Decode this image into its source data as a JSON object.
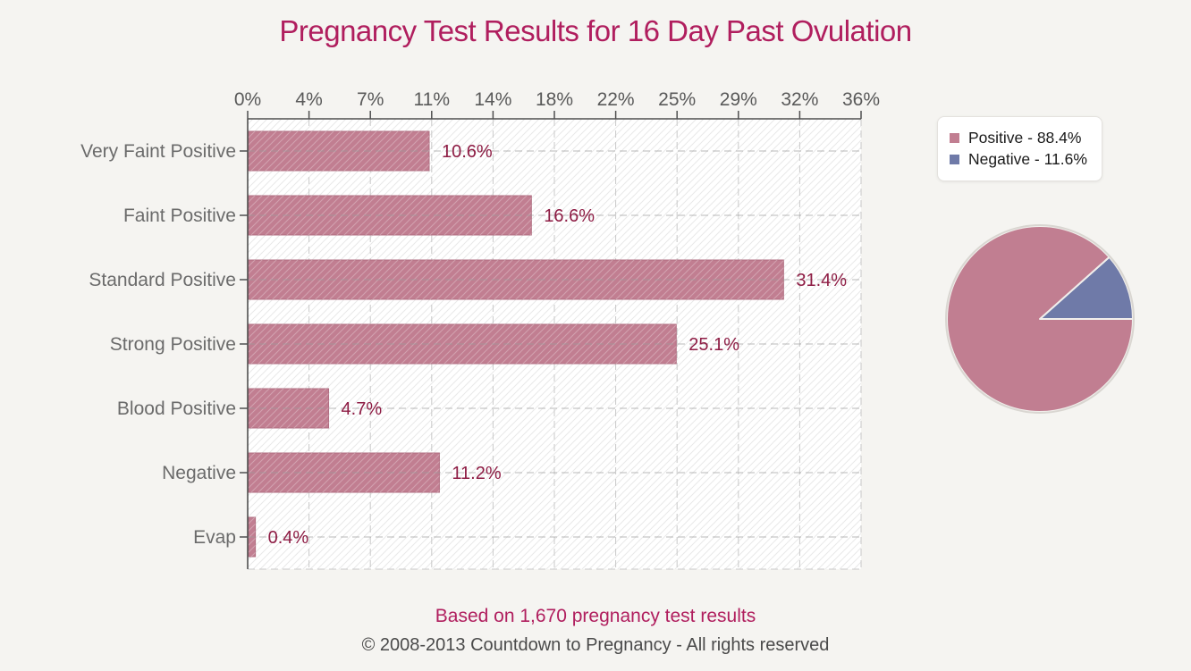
{
  "title": {
    "text": "Pregnancy Test Results for 16 Day Past Ovulation"
  },
  "chart_data": [
    {
      "type": "bar",
      "orientation": "horizontal",
      "title": "Pregnancy Test Results for 16 Day Past Ovulation",
      "categories": [
        "Very Faint Positive",
        "Faint Positive",
        "Standard Positive",
        "Strong Positive",
        "Blood Positive",
        "Negative",
        "Evap"
      ],
      "values": [
        10.6,
        16.6,
        31.4,
        25.1,
        4.7,
        11.2,
        0.4
      ],
      "value_labels": [
        "10.6%",
        "16.6%",
        "31.4%",
        "25.1%",
        "4.7%",
        "11.2%",
        "0.4%"
      ],
      "xlabel": "",
      "ylabel": "",
      "xlim": [
        0,
        36
      ],
      "x_tick_values": [
        0,
        3.6,
        7.2,
        10.8,
        14.4,
        18,
        21.6,
        25.2,
        28.8,
        32.4,
        36
      ],
      "x_tick_labels": [
        "0%",
        "4%",
        "7%",
        "11%",
        "14%",
        "18%",
        "22%",
        "25%",
        "29%",
        "32%",
        "36%"
      ],
      "axis_position": "top",
      "grid": true,
      "plot_hatch": true,
      "bar_color": "#c17e91",
      "bar_border_color": "#b06e81",
      "value_label_color": "#8e1c44"
    },
    {
      "type": "pie",
      "slices": [
        {
          "name": "Positive",
          "value": 88.4,
          "color": "#c17e91"
        },
        {
          "name": "Negative",
          "value": 11.6,
          "color": "#6f7aa8"
        }
      ],
      "start_angle_deg": 0,
      "direction": "counterclockwise",
      "legend_position": "top-right"
    }
  ],
  "legend": {
    "items": [
      {
        "label": "Positive - 88.4%",
        "color": "#c17e91"
      },
      {
        "label": "Negative - 11.6%",
        "color": "#6f7aa8"
      }
    ]
  },
  "footer": {
    "line1": "Based on 1,670 pregnancy test results",
    "line2": "© 2008-2013 Countdown to Pregnancy - All rights reserved"
  },
  "colors": {
    "page_bg": "#f5f4f1",
    "title": "#b01e5e",
    "axis": "#4f4f4f",
    "tick_label": "#595959",
    "category_label": "#6b6b6b",
    "gridline": "#c9c9c9",
    "row_guide": "#9b9b9b",
    "plot_bg": "#ffffff",
    "hatch": "#e9e9e9",
    "footer_note": "#b01e5e",
    "copyright": "#4a4a4a",
    "pie_ring": "#d9d6d1",
    "pie_slice_border": "#f1efec"
  }
}
